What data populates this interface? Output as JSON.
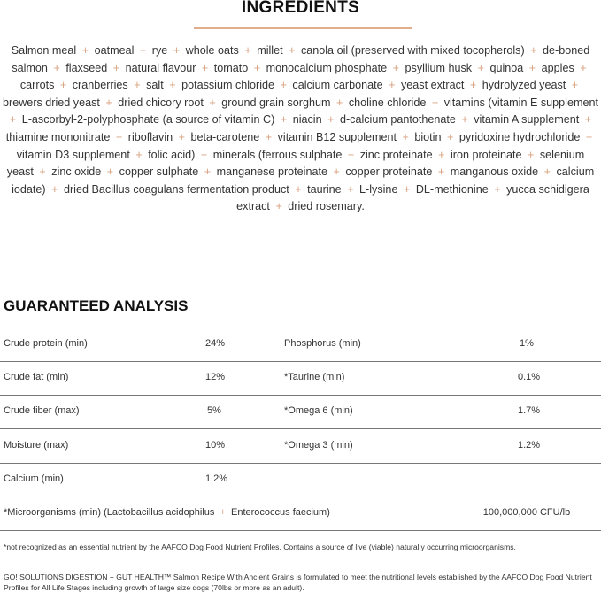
{
  "ingredients": {
    "title": "INGREDIENTS",
    "accent_color": "#d9a27f",
    "items": [
      "Salmon meal",
      "oatmeal",
      "rye",
      "whole oats",
      "millet",
      "canola oil (preserved with mixed tocopherols)",
      "de-boned salmon",
      "flaxseed",
      "natural flavour",
      "tomato",
      "monocalcium phosphate",
      "psyllium husk",
      "quinoa",
      "apples",
      "carrots",
      "cranberries",
      "salt",
      "potassium chloride",
      "calcium carbonate",
      "yeast extract",
      "hydrolyzed yeast",
      "brewers dried yeast",
      "dried chicory root",
      "ground grain sorghum",
      "choline chloride",
      "vitamins (vitamin E supplement",
      "L-ascorbyl-2-polyphosphate (a source of vitamin C)",
      "niacin",
      "d-calcium pantothenate",
      "vitamin A supplement",
      "thiamine mononitrate",
      "riboflavin",
      "beta-carotene",
      "vitamin B12 supplement",
      "biotin",
      "pyridoxine hydrochloride",
      "vitamin D3 supplement",
      "folic acid)",
      "minerals (ferrous sulphate",
      "zinc proteinate",
      "iron proteinate",
      "selenium yeast",
      "zinc oxide",
      "copper sulphate",
      "manganese proteinate",
      "copper proteinate",
      "manganous oxide",
      "calcium iodate)",
      "dried Bacillus coagulans fermentation product",
      "taurine",
      "L-lysine",
      "DL-methionine",
      "yucca schidigera extract",
      "dried rosemary."
    ]
  },
  "analysis": {
    "title": "GUARANTEED ANALYSIS",
    "rows": [
      {
        "n1": "Crude protein (min)",
        "v1": "24%",
        "n2": "Phosphorus (min)",
        "v2": "1%"
      },
      {
        "n1": "Crude fat (min)",
        "v1": "12%",
        "n2": "*Taurine (min)",
        "v2": "0.1%"
      },
      {
        "n1": "Crude fiber (max)",
        "v1": "5%",
        "n2": "*Omega 6 (min)",
        "v2": "1.7%"
      },
      {
        "n1": "Moisture (max)",
        "v1": "10%",
        "n2": "*Omega 3 (min)",
        "v2": "1.2%"
      },
      {
        "n1": "Calcium (min)",
        "v1": "1.2%",
        "n2": "",
        "v2": ""
      }
    ],
    "micro": {
      "label_a": "*Microorganisms (min) (Lactobacillus acidophilus",
      "plus": "+",
      "label_b": "Enterococcus faecium)",
      "value": "100,000,000 CFU/lb"
    },
    "footnote": "*not recognized as an essential nutrient by the AAFCO Dog Food Nutrient Profiles. Contains a source of live (viable) naturally occurring microorganisms.",
    "statement": "GO! SOLUTIONS DIGESTION + GUT HEALTH™ Salmon Recipe With Ancient Grains is formulated to meet the nutritional levels established by the AAFCO Dog Food Nutrient Profiles for All Life Stages including growth of large size dogs (70lbs or more as an adult)."
  }
}
